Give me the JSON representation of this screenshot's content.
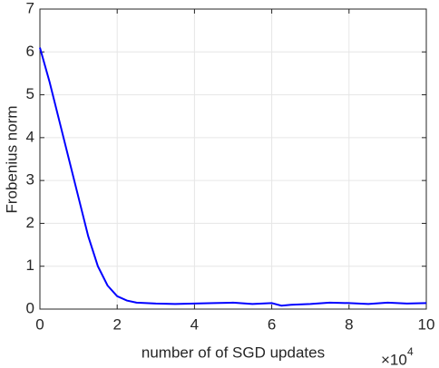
{
  "chart_data": {
    "type": "line",
    "xlabel": "number of of SGD updates",
    "ylabel": "Frobenius norm",
    "x_exponent_base": "×10",
    "x_exponent": "4",
    "x": [
      0,
      0.25,
      0.5,
      0.75,
      1.0,
      1.25,
      1.5,
      1.75,
      2.0,
      2.25,
      2.5,
      3,
      3.5,
      4,
      4.5,
      5,
      5.5,
      6,
      6.25,
      6.5,
      7,
      7.5,
      8,
      8.5,
      9,
      9.5,
      10
    ],
    "series": [
      {
        "color": "#0000ff",
        "values": [
          6.1,
          5.3,
          4.4,
          3.5,
          2.6,
          1.7,
          1.0,
          0.55,
          0.3,
          0.2,
          0.15,
          0.13,
          0.12,
          0.13,
          0.14,
          0.15,
          0.12,
          0.14,
          0.08,
          0.1,
          0.12,
          0.15,
          0.14,
          0.12,
          0.15,
          0.13,
          0.14
        ]
      }
    ],
    "xlim": [
      0,
      10
    ],
    "xticks": [
      0,
      2,
      4,
      6,
      8,
      10
    ],
    "ylim": [
      0,
      7
    ],
    "yticks": [
      0,
      1,
      2,
      3,
      4,
      5,
      6,
      7
    ],
    "grid": true
  }
}
